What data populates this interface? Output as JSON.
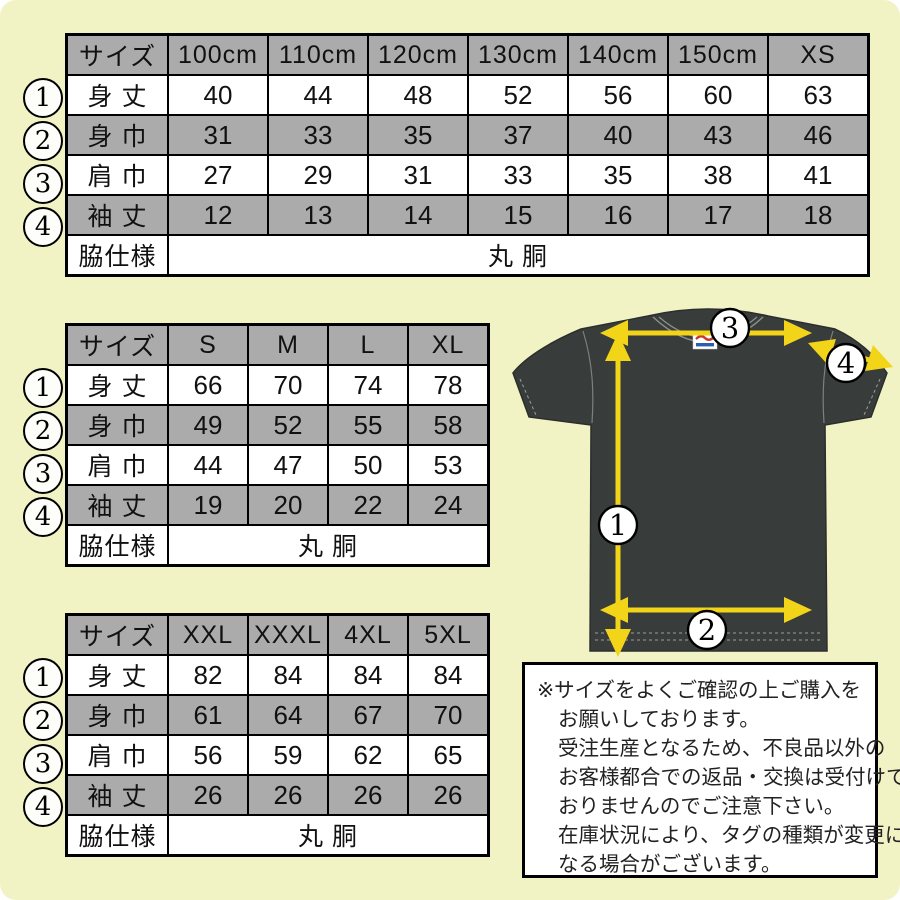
{
  "colors": {
    "background": "#f2f3c5",
    "table_header_bg": "#ababab",
    "row_white": "#ffffff",
    "border": "#000000",
    "shirt_body": "#383c3a",
    "arrow_yellow": "#f2d419",
    "marker_circle_bg": "#ffffff",
    "notice_bg": "#ffffff"
  },
  "tables": [
    {
      "name": "kids-xs-size-table",
      "columns": [
        "サイズ",
        "100cm",
        "110cm",
        "120cm",
        "130cm",
        "140cm",
        "150cm",
        "XS"
      ],
      "rows": [
        {
          "marker": "1",
          "label": "身 丈",
          "values": [
            "40",
            "44",
            "48",
            "52",
            "56",
            "60",
            "63"
          ]
        },
        {
          "marker": "2",
          "label": "身 巾",
          "values": [
            "31",
            "33",
            "35",
            "37",
            "40",
            "43",
            "46"
          ]
        },
        {
          "marker": "3",
          "label": "肩 巾",
          "values": [
            "27",
            "29",
            "31",
            "33",
            "35",
            "38",
            "41"
          ]
        },
        {
          "marker": "4",
          "label": "袖 丈",
          "values": [
            "12",
            "13",
            "14",
            "15",
            "16",
            "17",
            "18"
          ]
        }
      ],
      "footer_label": "脇仕様",
      "footer_value": "丸 胴"
    },
    {
      "name": "s-xl-size-table",
      "columns": [
        "サイズ",
        "S",
        "M",
        "L",
        "XL"
      ],
      "rows": [
        {
          "marker": "1",
          "label": "身 丈",
          "values": [
            "66",
            "70",
            "74",
            "78"
          ]
        },
        {
          "marker": "2",
          "label": "身 巾",
          "values": [
            "49",
            "52",
            "55",
            "58"
          ]
        },
        {
          "marker": "3",
          "label": "肩 巾",
          "values": [
            "44",
            "47",
            "50",
            "53"
          ]
        },
        {
          "marker": "4",
          "label": "袖 丈",
          "values": [
            "19",
            "20",
            "22",
            "24"
          ]
        }
      ],
      "footer_label": "脇仕様",
      "footer_value": "丸 胴"
    },
    {
      "name": "xxl-5xl-size-table",
      "columns": [
        "サイズ",
        "XXL",
        "XXXL",
        "4XL",
        "5XL"
      ],
      "rows": [
        {
          "marker": "1",
          "label": "身 丈",
          "values": [
            "82",
            "84",
            "84",
            "84"
          ]
        },
        {
          "marker": "2",
          "label": "身 巾",
          "values": [
            "61",
            "64",
            "67",
            "70"
          ]
        },
        {
          "marker": "3",
          "label": "肩 巾",
          "values": [
            "56",
            "59",
            "62",
            "65"
          ]
        },
        {
          "marker": "4",
          "label": "袖 丈",
          "values": [
            "26",
            "26",
            "26",
            "26"
          ]
        }
      ],
      "footer_label": "脇仕様",
      "footer_value": "丸 胴"
    }
  ],
  "diagram": {
    "markers": [
      {
        "id": "1",
        "meaning": "身丈 body length arrow"
      },
      {
        "id": "2",
        "meaning": "身巾 body width arrow"
      },
      {
        "id": "3",
        "meaning": "肩巾 shoulder width arrow"
      },
      {
        "id": "4",
        "meaning": "袖丈 sleeve length arrow"
      }
    ]
  },
  "notice": {
    "lines": [
      "※サイズをよくご確認の上ご購入を",
      "お願いしております。",
      "受注生産となるため、不良品以外の",
      "お客様都合での返品・交換は受付けて",
      "おりませんのでご注意下さい。",
      "在庫状況により、タグの種類が変更に",
      "なる場合がございます。"
    ]
  }
}
